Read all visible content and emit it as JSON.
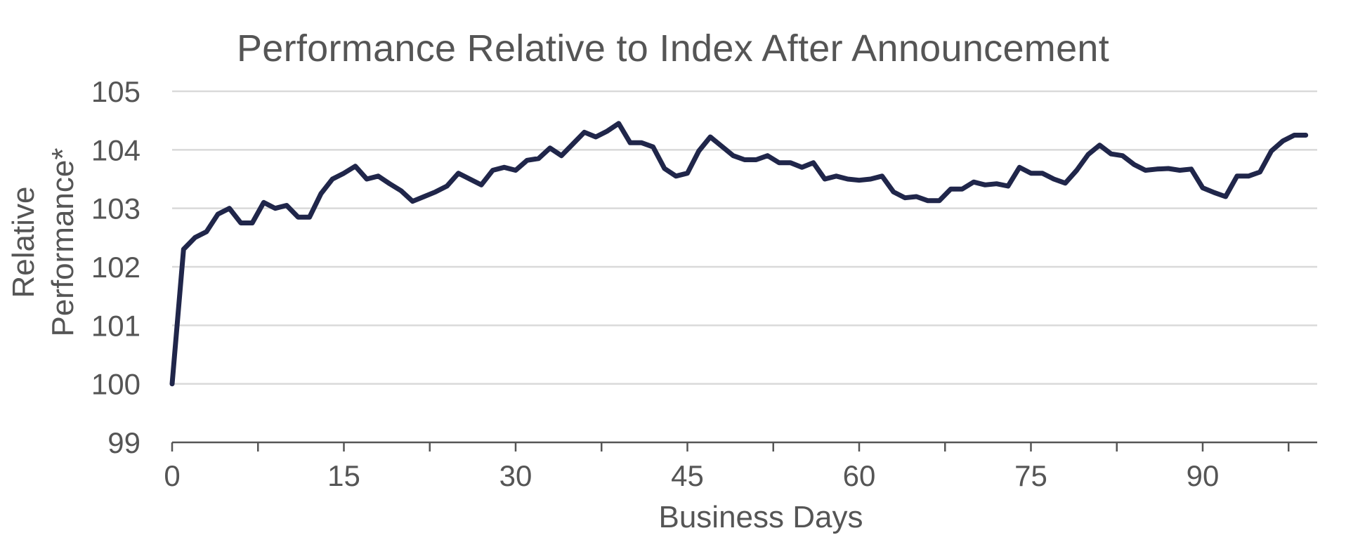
{
  "chart_data": {
    "type": "line",
    "title": "Performance Relative to Index After Announcement",
    "xlabel": "Business Days",
    "ylabel_lines": [
      "Relative",
      "Performance*"
    ],
    "ylim": [
      99,
      105
    ],
    "yticks": [
      99,
      100,
      101,
      102,
      103,
      104,
      105
    ],
    "xlim": [
      0,
      100
    ],
    "xticks": [
      0,
      15,
      30,
      45,
      60,
      75,
      90
    ],
    "grid": true,
    "colors": {
      "line": "#20264a",
      "grid": "#d9d9d9",
      "axis": "#555555",
      "text": "#555555"
    },
    "series": [
      {
        "x": [
          0,
          1,
          2,
          3,
          4,
          5,
          6,
          7,
          8,
          9,
          10,
          11,
          12,
          13,
          14,
          15,
          16,
          17,
          18,
          19,
          20,
          21,
          22,
          23,
          24,
          25,
          26,
          27,
          28,
          29,
          30,
          31,
          32,
          33,
          34,
          35,
          36,
          37,
          38,
          39,
          40,
          41,
          42,
          43,
          44,
          45,
          46,
          47,
          48,
          49,
          50,
          51,
          52,
          53,
          54,
          55,
          56,
          57,
          58,
          59,
          60,
          61,
          62,
          63,
          64,
          65,
          66,
          67,
          68,
          69,
          70,
          71,
          72,
          73,
          74,
          75,
          76,
          77,
          78,
          79,
          80,
          81,
          82,
          83,
          84,
          85,
          86,
          87,
          88,
          89,
          90,
          91,
          92,
          93,
          94,
          95,
          96,
          97,
          98,
          99
        ],
        "values": [
          100.0,
          102.3,
          102.5,
          102.6,
          102.9,
          103.0,
          102.75,
          102.75,
          103.1,
          103.0,
          103.05,
          102.85,
          102.85,
          103.25,
          103.5,
          103.6,
          103.72,
          103.5,
          103.55,
          103.42,
          103.3,
          103.12,
          103.2,
          103.28,
          103.38,
          103.6,
          103.5,
          103.4,
          103.65,
          103.7,
          103.65,
          103.82,
          103.85,
          104.03,
          103.9,
          104.1,
          104.3,
          104.22,
          104.32,
          104.45,
          104.12,
          104.12,
          104.05,
          103.68,
          103.55,
          103.6,
          103.98,
          104.22,
          104.06,
          103.9,
          103.83,
          103.83,
          103.9,
          103.78,
          103.78,
          103.7,
          103.78,
          103.5,
          103.55,
          103.5,
          103.48,
          103.5,
          103.55,
          103.28,
          103.18,
          103.2,
          103.13,
          103.13,
          103.33,
          103.33,
          103.45,
          103.4,
          103.42,
          103.38,
          103.7,
          103.6,
          103.6,
          103.5,
          103.43,
          103.65,
          103.92,
          104.08,
          103.93,
          103.9,
          103.75,
          103.65,
          103.67,
          103.68,
          103.65,
          103.67,
          103.35,
          103.27,
          103.2,
          103.55,
          103.55,
          103.62,
          103.98,
          104.15,
          104.25,
          104.25
        ]
      }
    ]
  }
}
